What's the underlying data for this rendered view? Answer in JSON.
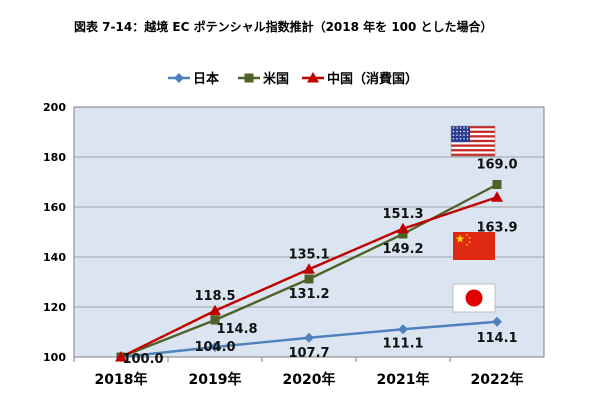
{
  "title": "図表 7-14：越境 EC ポテンシャル指数推計（2018 年を 100 とした場合）",
  "colors": {
    "japan": "#4f81bd",
    "usa": "#4f6228",
    "china": "#c00000",
    "plot_bg": "#dbe5f1"
  },
  "chart_data": {
    "type": "line",
    "title": "図表 7-14：越境 EC ポテンシャル指数推計（2018 年を 100 とした場合）",
    "xlabel": "",
    "ylabel": "",
    "categories": [
      "2018年",
      "2019年",
      "2020年",
      "2021年",
      "2022年"
    ],
    "ylim": [
      100,
      200
    ],
    "yticks": [
      100,
      120,
      140,
      160,
      180,
      200
    ],
    "grid": true,
    "legend": "top",
    "series": [
      {
        "name": "日本",
        "values": [
          100.0,
          104.0,
          107.7,
          111.1,
          114.1
        ],
        "color": "#4f81bd",
        "marker": "diamond",
        "flag_icon": "japan-flag-icon"
      },
      {
        "name": "米国",
        "values": [
          100.0,
          114.8,
          131.2,
          149.2,
          169.0
        ],
        "color": "#4f6228",
        "marker": "square",
        "flag_icon": "usa-flag-icon"
      },
      {
        "name": "中国（消費国）",
        "values": [
          100.0,
          118.5,
          135.1,
          151.3,
          163.9
        ],
        "color": "#c00000",
        "marker": "triangle",
        "flag_icon": "china-flag-icon"
      }
    ],
    "data_labels": [
      {
        "text": "100.0",
        "series": 0,
        "index": 0
      },
      {
        "text": "104.0",
        "series": 0,
        "index": 1
      },
      {
        "text": "107.7",
        "series": 0,
        "index": 2
      },
      {
        "text": "111.1",
        "series": 0,
        "index": 3
      },
      {
        "text": "114.1",
        "series": 0,
        "index": 4
      },
      {
        "text": "114.8",
        "series": 1,
        "index": 1
      },
      {
        "text": "131.2",
        "series": 1,
        "index": 2
      },
      {
        "text": "149.2",
        "series": 1,
        "index": 3
      },
      {
        "text": "169.0",
        "series": 1,
        "index": 4
      },
      {
        "text": "118.5",
        "series": 2,
        "index": 1
      },
      {
        "text": "135.1",
        "series": 2,
        "index": 2
      },
      {
        "text": "151.3",
        "series": 2,
        "index": 3
      },
      {
        "text": "163.9",
        "series": 2,
        "index": 4
      }
    ]
  }
}
